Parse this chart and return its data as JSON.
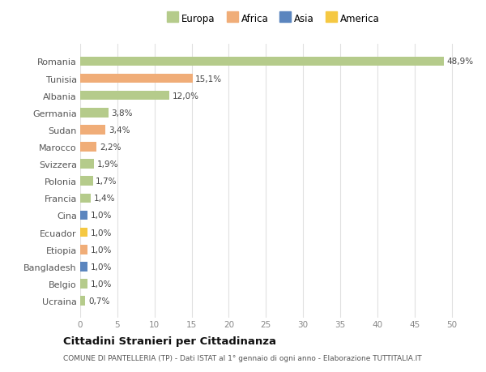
{
  "countries": [
    "Romania",
    "Tunisia",
    "Albania",
    "Germania",
    "Sudan",
    "Marocco",
    "Svizzera",
    "Polonia",
    "Francia",
    "Cina",
    "Ecuador",
    "Etiopia",
    "Bangladesh",
    "Belgio",
    "Ucraina"
  ],
  "values": [
    48.9,
    15.1,
    12.0,
    3.8,
    3.4,
    2.2,
    1.9,
    1.7,
    1.4,
    1.0,
    1.0,
    1.0,
    1.0,
    1.0,
    0.7
  ],
  "labels": [
    "48,9%",
    "15,1%",
    "12,0%",
    "3,8%",
    "3,4%",
    "2,2%",
    "1,9%",
    "1,7%",
    "1,4%",
    "1,0%",
    "1,0%",
    "1,0%",
    "1,0%",
    "1,0%",
    "0,7%"
  ],
  "continents": [
    "Europa",
    "Africa",
    "Europa",
    "Europa",
    "Africa",
    "Africa",
    "Europa",
    "Europa",
    "Europa",
    "Asia",
    "America",
    "Africa",
    "Asia",
    "Europa",
    "Europa"
  ],
  "colors": {
    "Europa": "#b5cb8b",
    "Africa": "#f0ad78",
    "Asia": "#5b85be",
    "America": "#f5c842"
  },
  "background_color": "#ffffff",
  "grid_color": "#e0e0e0",
  "title": "Cittadini Stranieri per Cittadinanza",
  "subtitle": "COMUNE DI PANTELLERIA (TP) - Dati ISTAT al 1° gennaio di ogni anno - Elaborazione TUTTITALIA.IT",
  "xlim": [
    0,
    52
  ],
  "xticks": [
    0,
    5,
    10,
    15,
    20,
    25,
    30,
    35,
    40,
    45,
    50
  ],
  "legend_order": [
    "Europa",
    "Africa",
    "Asia",
    "America"
  ]
}
